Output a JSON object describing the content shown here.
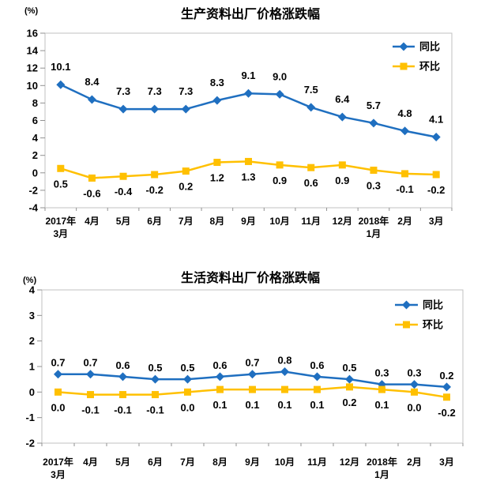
{
  "colors": {
    "plot_border": "#C0C0C0",
    "tick": "#919191",
    "text": "#000000",
    "yoy_blue": "#1F6FC0",
    "mom_yellow": "#FFC000"
  },
  "chart_data": [
    {
      "type": "line",
      "title": "生产资料出厂价格涨跌幅",
      "unit_label": "(%)",
      "categories": [
        "2017年\n3月",
        "4月",
        "5月",
        "6月",
        "7月",
        "8月",
        "9月",
        "10月",
        "11月",
        "12月",
        "2018年\n1月",
        "2月",
        "3月"
      ],
      "ylim": [
        -4,
        16
      ],
      "ytick_step": 2,
      "grid": false,
      "legend_position": "top-right",
      "series": [
        {
          "id": "yoy",
          "name": "同比",
          "marker": "diamond",
          "color": "#1F6FC0",
          "values": [
            10.1,
            8.4,
            7.3,
            7.3,
            7.3,
            8.3,
            9.1,
            9.0,
            7.5,
            6.4,
            5.7,
            4.8,
            4.1
          ]
        },
        {
          "id": "mom",
          "name": "环比",
          "marker": "square",
          "color": "#FFC000",
          "values": [
            0.5,
            -0.6,
            -0.4,
            -0.2,
            0.2,
            1.2,
            1.3,
            0.9,
            0.6,
            0.9,
            0.3,
            -0.1,
            -0.2
          ]
        }
      ]
    },
    {
      "type": "line",
      "title": "生活资料出厂价格涨跌幅",
      "unit_label": "(%)",
      "categories": [
        "2017年\n3月",
        "4月",
        "5月",
        "6月",
        "7月",
        "8月",
        "9月",
        "10月",
        "11月",
        "12月",
        "2018年\n1月",
        "2月",
        "3月"
      ],
      "ylim": [
        -2,
        4
      ],
      "ytick_step": 1,
      "grid": false,
      "legend_position": "top-right",
      "series": [
        {
          "id": "yoy",
          "name": "同比",
          "marker": "diamond",
          "color": "#1F6FC0",
          "values": [
            0.7,
            0.7,
            0.6,
            0.5,
            0.5,
            0.6,
            0.7,
            0.8,
            0.6,
            0.5,
            0.3,
            0.3,
            0.2
          ]
        },
        {
          "id": "mom",
          "name": "环比",
          "marker": "square",
          "color": "#FFC000",
          "values": [
            0.0,
            -0.1,
            -0.1,
            -0.1,
            0.0,
            0.1,
            0.1,
            0.1,
            0.1,
            0.2,
            0.1,
            0.0,
            -0.2
          ]
        }
      ]
    }
  ]
}
